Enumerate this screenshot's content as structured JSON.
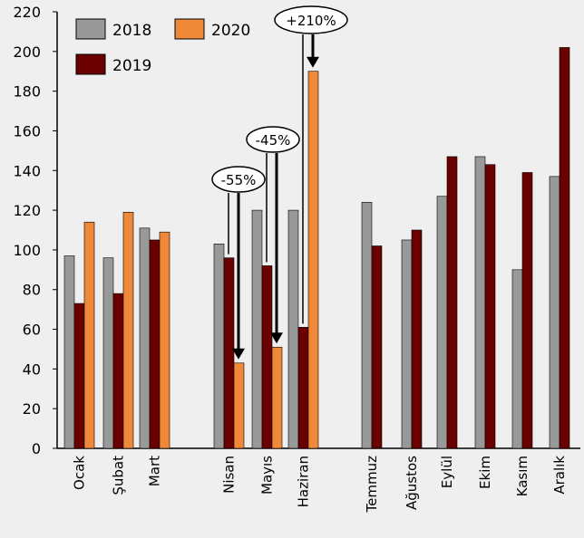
{
  "chart_data": {
    "type": "bar",
    "categories": [
      "Ocak",
      "Şubat",
      "Mart",
      "Nisan",
      "Mayıs",
      "Haziran",
      "Temmuz",
      "Ağustos",
      "Eylül",
      "Ekim",
      "Kasım",
      "Aralık"
    ],
    "series": [
      {
        "name": "2018",
        "color": "#999999",
        "values": [
          97,
          96,
          111,
          103,
          120,
          120,
          124,
          105,
          127,
          147,
          90,
          137
        ]
      },
      {
        "name": "2019",
        "color": "#6b0000",
        "values": [
          73,
          78,
          105,
          96,
          92,
          61,
          102,
          110,
          147,
          143,
          139,
          202
        ]
      },
      {
        "name": "2020",
        "color": "#f0883a",
        "values": [
          114,
          119,
          109,
          43,
          51,
          190,
          null,
          null,
          null,
          null,
          null,
          null
        ]
      }
    ],
    "ylim": [
      0,
      220
    ],
    "yticks": [
      0,
      20,
      40,
      60,
      80,
      100,
      120,
      140,
      160,
      180,
      200,
      220
    ],
    "legend_position": "top-left",
    "grid": false,
    "annotations": [
      {
        "text": "-55%",
        "category": "Nisan"
      },
      {
        "text": "-45%",
        "category": "Mayıs"
      },
      {
        "text": "+210%",
        "category": "Haziran"
      }
    ]
  }
}
